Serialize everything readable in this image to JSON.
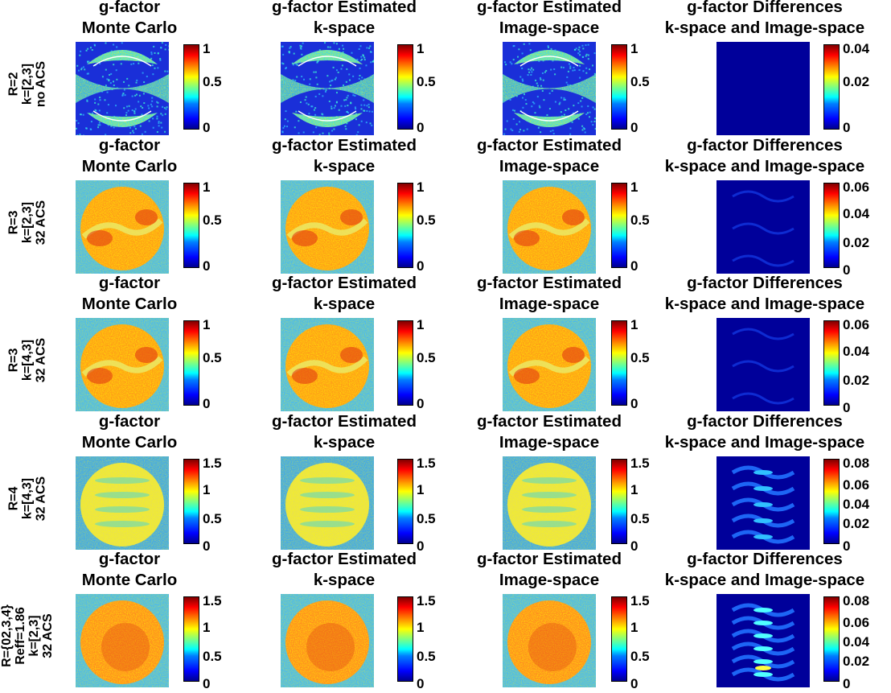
{
  "column_titles": [
    [
      "g-factor",
      "Monte Carlo"
    ],
    [
      "g-factor Estimated",
      "k-space"
    ],
    [
      "g-factor Estimated",
      "Image-space"
    ],
    [
      "g-factor Differences",
      "k-space and Image-space"
    ]
  ],
  "rows": [
    {
      "label": [
        "R=2",
        "k=[2,3]",
        "no ACS"
      ],
      "ticks": [
        [
          "1",
          "0.5",
          "0"
        ],
        [
          "1",
          "0.5",
          "0"
        ],
        [
          "1",
          "0.5",
          "0"
        ],
        [
          "0.04",
          "0.02",
          "0"
        ]
      ],
      "pattern": "sparse",
      "diff_pattern": "flat"
    },
    {
      "label": [
        "R=3",
        "k=[2,3]",
        "32 ACS"
      ],
      "ticks": [
        [
          "1",
          "0.5",
          "0"
        ],
        [
          "1",
          "0.5",
          "0"
        ],
        [
          "1",
          "0.5",
          "0"
        ],
        [
          "0.06",
          "0.04",
          "0.02",
          "0"
        ]
      ],
      "pattern": "band",
      "diff_pattern": "waves-faint"
    },
    {
      "label": [
        "R=3",
        "k=[4,3]",
        "32 ACS"
      ],
      "ticks": [
        [
          "1",
          "0.5",
          "0"
        ],
        [
          "1",
          "0.5",
          "0"
        ],
        [
          "1",
          "0.5",
          "0"
        ],
        [
          "0.06",
          "0.04",
          "0.02",
          "0"
        ]
      ],
      "pattern": "band",
      "diff_pattern": "waves-faint"
    },
    {
      "label": [
        "R=4",
        "k=[4,3]",
        "32 ACS"
      ],
      "ticks": [
        [
          "1.5",
          "1",
          "0.5",
          "0"
        ],
        [
          "1.5",
          "1",
          "0.5",
          "0"
        ],
        [
          "1.5",
          "1",
          "0.5",
          "0"
        ],
        [
          "0.08",
          "0.06",
          "0.04",
          "0.02",
          "0"
        ]
      ],
      "pattern": "yellow",
      "diff_pattern": "waves"
    },
    {
      "label": [
        "R={02,3,4}",
        "Reff=1.86",
        "k=[2,3]",
        "32 ACS"
      ],
      "ticks": [
        [
          "1.5",
          "1",
          "0.5",
          "0"
        ],
        [
          "1.5",
          "1",
          "0.5",
          "0"
        ],
        [
          "1.5",
          "1",
          "0.5",
          "0"
        ],
        [
          "0.08",
          "0.06",
          "0.04",
          "0.02",
          "0"
        ]
      ],
      "pattern": "orange",
      "diff_pattern": "waves-strong"
    }
  ],
  "colormap": "jet"
}
